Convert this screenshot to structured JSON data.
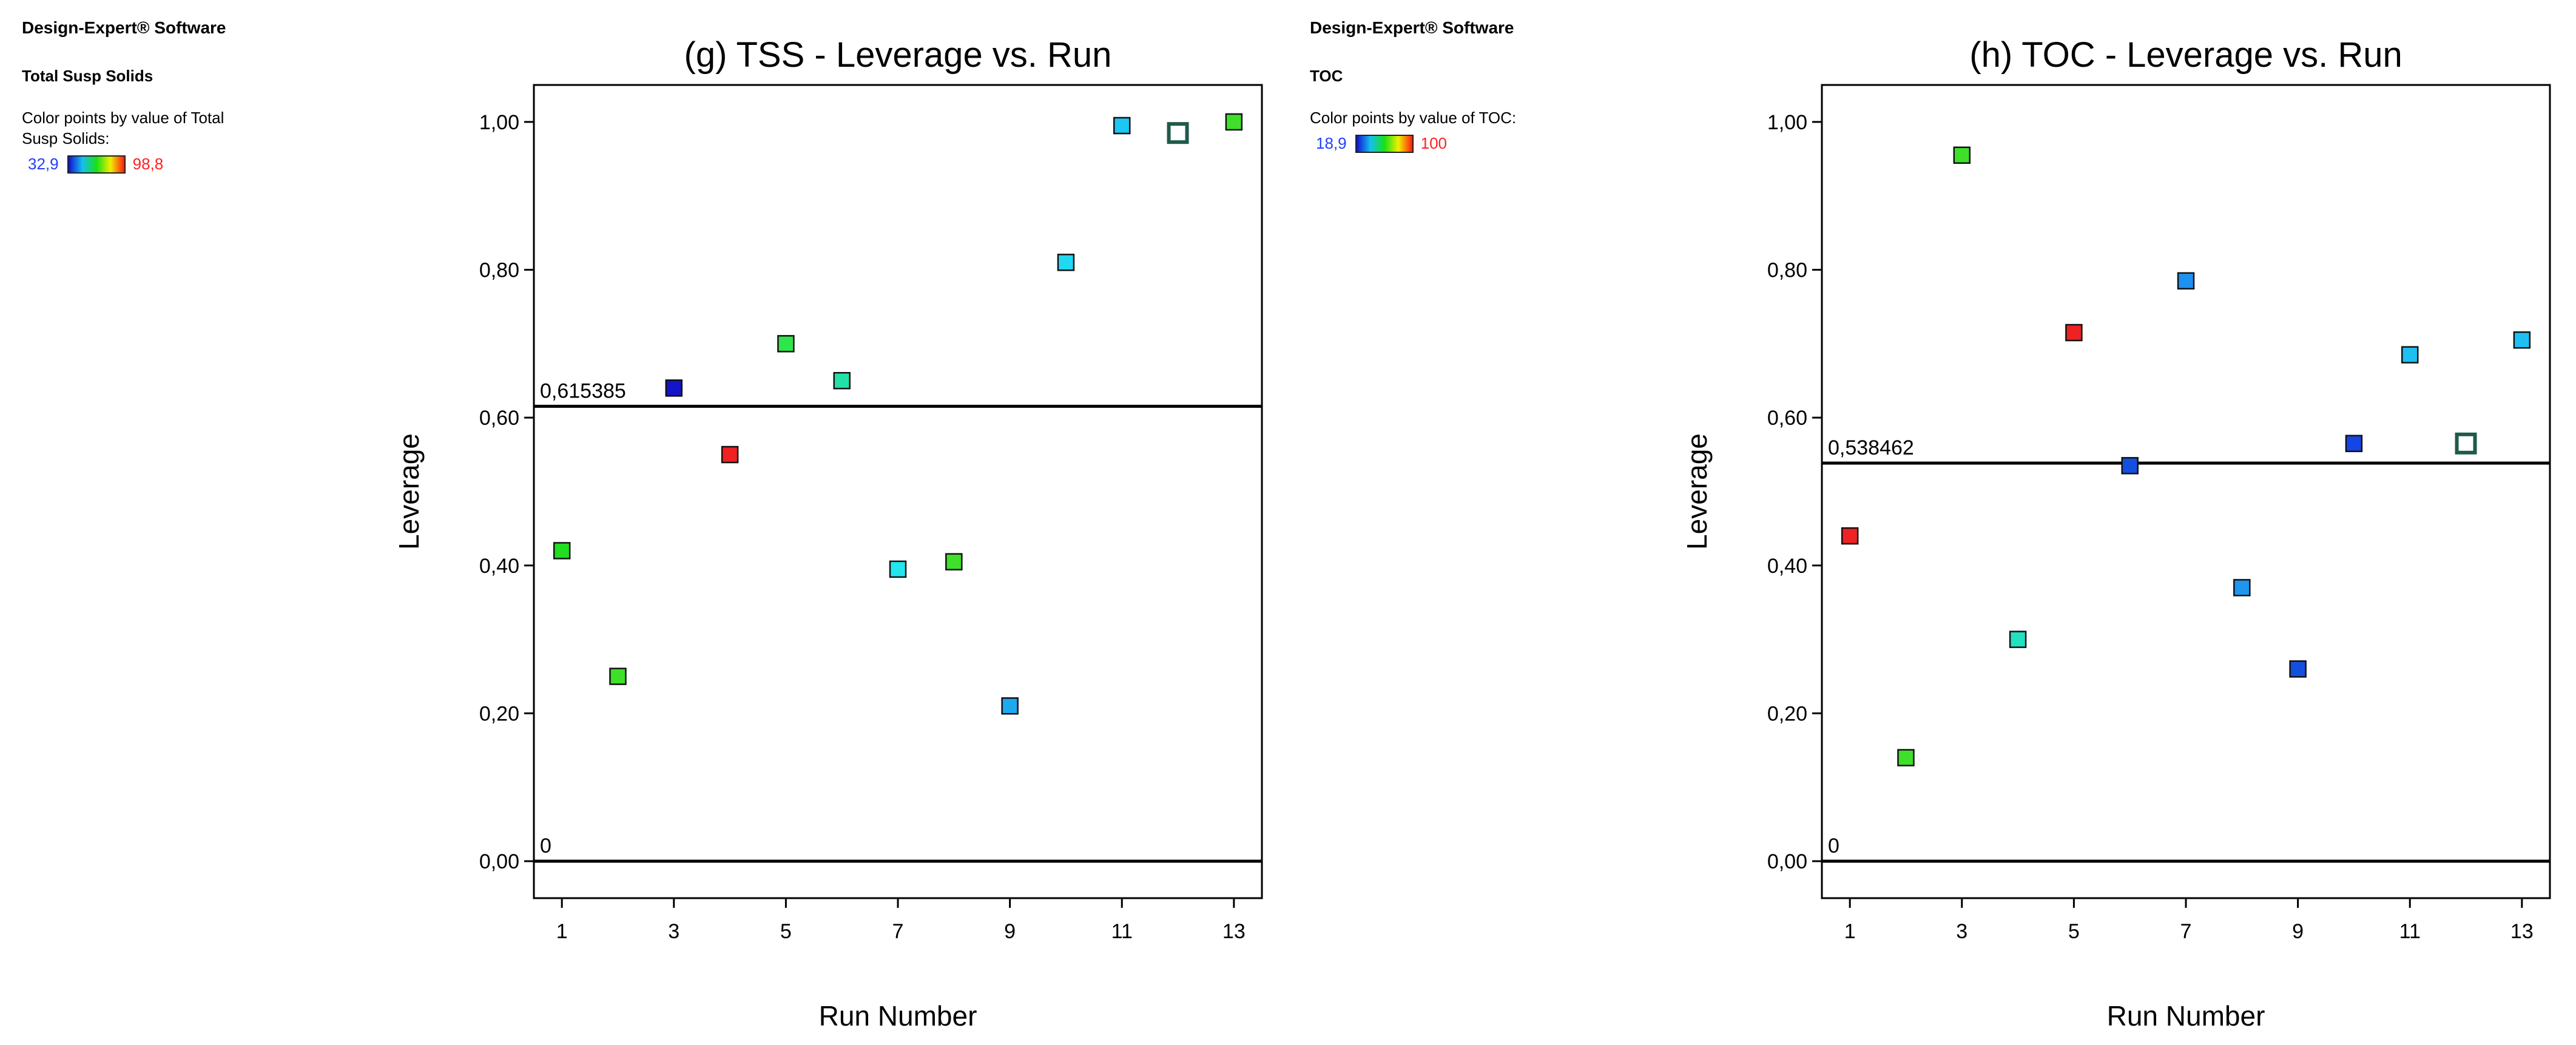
{
  "panels": [
    {
      "software": "Design-Expert® Software",
      "response": "Total Susp Solids",
      "color_note": "Color points by value of Total Susp Solids:",
      "gradient": {
        "min": "32,9",
        "max": "98,8"
      }
    },
    {
      "software": "Design-Expert® Software",
      "response": "TOC",
      "color_note": "Color points by value of TOC:",
      "gradient": {
        "min": "18,9",
        "max": "100"
      }
    }
  ],
  "chart_data": [
    {
      "type": "scatter",
      "title": "(g) TSS - Leverage vs. Run",
      "xlabel": "Run Number",
      "ylabel": "Leverage",
      "xlim": [
        0.5,
        13.5
      ],
      "ylim": [
        -0.05,
        1.05
      ],
      "xticks": [
        "1",
        "3",
        "5",
        "7",
        "9",
        "11",
        "13"
      ],
      "yticks": [
        "0,00",
        "0,20",
        "0,40",
        "0,60",
        "0,80",
        "1,00"
      ],
      "ref_lines": [
        {
          "value": 0.615385,
          "label": "0,615385"
        },
        {
          "value": 0,
          "label": "0"
        }
      ],
      "points": [
        {
          "x": 1,
          "y": 0.42,
          "color": "#22dd22"
        },
        {
          "x": 2,
          "y": 0.25,
          "color": "#3ee02a"
        },
        {
          "x": 3,
          "y": 0.64,
          "color": "#1414c8"
        },
        {
          "x": 4,
          "y": 0.55,
          "color": "#ee2222"
        },
        {
          "x": 5,
          "y": 0.7,
          "color": "#2ee64a"
        },
        {
          "x": 6,
          "y": 0.65,
          "color": "#22e0a8"
        },
        {
          "x": 7,
          "y": 0.395,
          "color": "#22e6ee"
        },
        {
          "x": 8,
          "y": 0.405,
          "color": "#3ee02a"
        },
        {
          "x": 9,
          "y": 0.21,
          "color": "#1ea8f0"
        },
        {
          "x": 10,
          "y": 0.81,
          "color": "#22d8f0"
        },
        {
          "x": 11,
          "y": 0.995,
          "color": "#1ec6f2"
        },
        {
          "x": 12,
          "y": 0.985,
          "color": "#ffffff",
          "hollow": true
        },
        {
          "x": 13,
          "y": 1.0,
          "color": "#3ee02a"
        }
      ]
    },
    {
      "type": "scatter",
      "title": "(h) TOC - Leverage vs. Run",
      "xlabel": "Run Number",
      "ylabel": "Leverage",
      "xlim": [
        0.5,
        13.5
      ],
      "ylim": [
        -0.05,
        1.05
      ],
      "xticks": [
        "1",
        "3",
        "5",
        "7",
        "9",
        "11",
        "13"
      ],
      "yticks": [
        "0,00",
        "0,20",
        "0,40",
        "0,60",
        "0,80",
        "1,00"
      ],
      "ref_lines": [
        {
          "value": 0.538462,
          "label": "0,538462"
        },
        {
          "value": 0,
          "label": "0"
        }
      ],
      "points": [
        {
          "x": 1,
          "y": 0.44,
          "color": "#ee2222"
        },
        {
          "x": 2,
          "y": 0.14,
          "color": "#3ee02a"
        },
        {
          "x": 3,
          "y": 0.955,
          "color": "#3ee02a"
        },
        {
          "x": 4,
          "y": 0.3,
          "color": "#22e0c0"
        },
        {
          "x": 5,
          "y": 0.715,
          "color": "#ee2222"
        },
        {
          "x": 6,
          "y": 0.535,
          "color": "#1450e0"
        },
        {
          "x": 7,
          "y": 0.785,
          "color": "#1e90f0"
        },
        {
          "x": 8,
          "y": 0.37,
          "color": "#1e96f0"
        },
        {
          "x": 9,
          "y": 0.26,
          "color": "#1450e0"
        },
        {
          "x": 10,
          "y": 0.565,
          "color": "#1446e6"
        },
        {
          "x": 11,
          "y": 0.685,
          "color": "#1ec0f2"
        },
        {
          "x": 12,
          "y": 0.565,
          "color": "#ffffff",
          "hollow": true
        },
        {
          "x": 13,
          "y": 0.705,
          "color": "#1ec0f2"
        }
      ]
    }
  ]
}
